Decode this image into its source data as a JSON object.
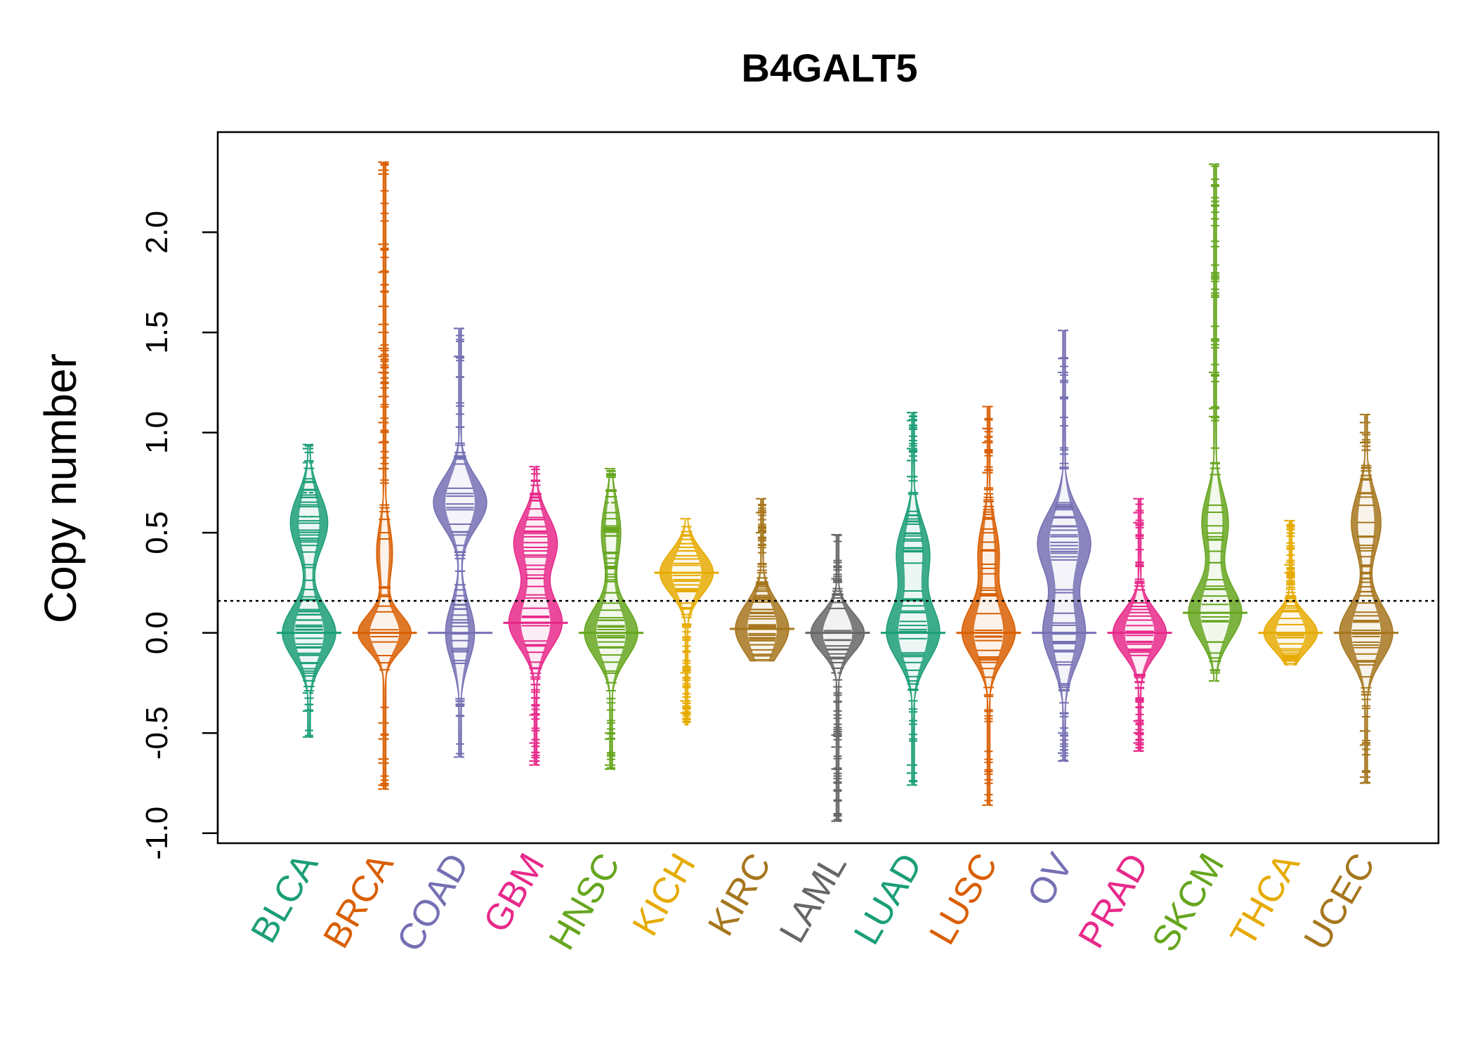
{
  "chart_data": {
    "type": "beanplot",
    "title": "B4GALT5",
    "xlabel": "",
    "ylabel": "Copy number",
    "ylim": [
      -1.05,
      2.5
    ],
    "y_ticks": [
      "-1.0",
      "-0.5",
      "0.0",
      "0.5",
      "1.0",
      "1.5",
      "2.0"
    ],
    "reference_line": 0.16,
    "categories": [
      "BLCA",
      "BRCA",
      "COAD",
      "GBM",
      "HNSC",
      "KICH",
      "KIRC",
      "LAML",
      "LUAD",
      "LUSC",
      "OV",
      "PRAD",
      "SKCM",
      "THCA",
      "UCEC"
    ],
    "colors": [
      "#1b9e77",
      "#d95f02",
      "#7570b3",
      "#e7298a",
      "#66a61e",
      "#e6ab02",
      "#a6761d",
      "#666666",
      "#1b9e77",
      "#d95f02",
      "#7570b3",
      "#e7298a",
      "#66a61e",
      "#e6ab02",
      "#a6761d"
    ],
    "series": [
      {
        "category": "BLCA",
        "min": -0.52,
        "max": 0.94,
        "modes": [
          [
            0.0,
            0.5
          ],
          [
            0.55,
            0.35
          ]
        ],
        "outliers": [
          -0.52,
          -0.39,
          -0.3,
          0.58,
          0.7,
          0.85,
          0.92,
          0.94
        ]
      },
      {
        "category": "BRCA",
        "min": -0.78,
        "max": 2.35,
        "modes": [
          [
            0.0,
            1.0
          ],
          [
            0.4,
            0.3
          ]
        ],
        "outliers": [
          -0.78,
          -0.76,
          -0.65,
          -0.63,
          -0.53,
          -0.45,
          0.82,
          0.95,
          1.05,
          1.18,
          1.3,
          1.38,
          1.42,
          1.5,
          1.54,
          1.63,
          1.8,
          1.94,
          2.29,
          2.31,
          2.35
        ]
      },
      {
        "category": "COAD",
        "min": -0.62,
        "max": 1.52,
        "modes": [
          [
            0.0,
            0.3
          ],
          [
            0.65,
            0.55
          ]
        ],
        "outliers": [
          -0.62,
          1.38,
          1.52
        ]
      },
      {
        "category": "GBM",
        "min": -0.66,
        "max": 0.83,
        "modes": [
          [
            0.05,
            0.55
          ],
          [
            0.45,
            0.45
          ]
        ],
        "outliers": [
          -0.66,
          -0.64,
          -0.55,
          -0.41,
          0.83
        ]
      },
      {
        "category": "HNSC",
        "min": -0.68,
        "max": 0.82,
        "modes": [
          [
            0.0,
            0.55
          ],
          [
            0.5,
            0.2
          ]
        ],
        "outliers": [
          -0.68,
          -0.66,
          -0.53,
          -0.5,
          0.65,
          0.82
        ]
      },
      {
        "category": "KICH",
        "min": -0.46,
        "max": 0.57,
        "modes": [
          [
            0.3,
            0.8
          ]
        ],
        "outliers": [
          -0.4,
          -0.34,
          -0.2,
          0.57
        ]
      },
      {
        "category": "KIRC",
        "min": -0.14,
        "max": 0.67,
        "modes": [
          [
            0.02,
            0.55
          ]
        ],
        "outliers": [
          0.5,
          0.6,
          0.67
        ]
      },
      {
        "category": "LAML",
        "min": -0.94,
        "max": 0.49,
        "modes": [
          [
            0.0,
            0.9
          ]
        ],
        "outliers": [
          -0.94,
          -0.68,
          -0.57,
          -0.51,
          -0.2,
          0.27,
          0.49
        ]
      },
      {
        "category": "LUAD",
        "min": -0.76,
        "max": 1.1,
        "modes": [
          [
            0.0,
            0.4
          ],
          [
            0.4,
            0.25
          ]
        ],
        "outliers": [
          -0.76,
          -0.7,
          -0.66,
          0.78,
          0.86,
          0.92,
          1.06,
          1.1
        ]
      },
      {
        "category": "LUSC",
        "min": -0.86,
        "max": 1.13,
        "modes": [
          [
            0.0,
            0.5
          ],
          [
            0.4,
            0.2
          ]
        ],
        "outliers": [
          -0.86,
          0.8,
          0.95,
          1.02,
          1.13
        ]
      },
      {
        "category": "OV",
        "min": -0.64,
        "max": 1.51,
        "modes": [
          [
            0.0,
            0.2
          ],
          [
            0.45,
            0.25
          ]
        ],
        "outliers": [
          -0.64,
          -0.6,
          -0.5,
          1.3,
          1.37,
          1.51
        ]
      },
      {
        "category": "PRAD",
        "min": -0.59,
        "max": 0.67,
        "modes": [
          [
            0.0,
            0.75
          ]
        ],
        "outliers": [
          -0.59,
          -0.55,
          -0.5,
          -0.44,
          0.55,
          0.6,
          0.67
        ]
      },
      {
        "category": "SKCM",
        "min": -0.24,
        "max": 2.34,
        "modes": [
          [
            0.1,
            0.5
          ],
          [
            0.55,
            0.25
          ]
        ],
        "outliers": [
          -0.24,
          1.08,
          1.12,
          1.3,
          2.34
        ]
      },
      {
        "category": "THCA",
        "min": -0.16,
        "max": 0.56,
        "modes": [
          [
            0.0,
            1.0
          ]
        ],
        "outliers": [
          0.3,
          0.34,
          0.56
        ]
      },
      {
        "category": "UCEC",
        "min": -0.75,
        "max": 1.09,
        "modes": [
          [
            0.0,
            0.45
          ],
          [
            0.55,
            0.25
          ]
        ],
        "outliers": [
          -0.75,
          -0.72,
          -0.56,
          -0.49,
          0.95,
          1.0,
          1.05,
          1.09
        ]
      }
    ]
  }
}
